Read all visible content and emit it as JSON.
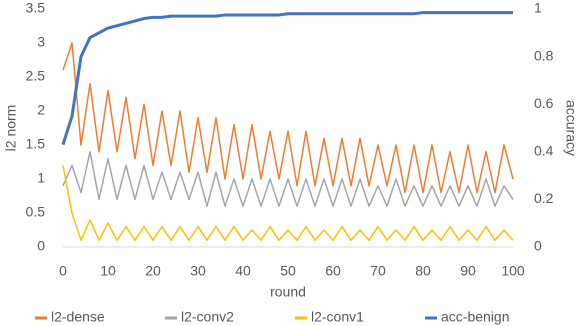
{
  "chart_data": {
    "type": "line",
    "x_label": "round",
    "y_label": "l2 norm",
    "y2_label": "accuracy",
    "x": [
      0,
      2,
      4,
      6,
      8,
      10,
      12,
      14,
      16,
      18,
      20,
      22,
      24,
      26,
      28,
      30,
      32,
      34,
      36,
      38,
      40,
      42,
      44,
      46,
      48,
      50,
      52,
      54,
      56,
      58,
      60,
      62,
      64,
      66,
      68,
      70,
      72,
      74,
      76,
      78,
      80,
      82,
      84,
      86,
      88,
      90,
      92,
      94,
      96,
      98,
      100
    ],
    "xlim": [
      0,
      100
    ],
    "xticks": [
      0,
      10,
      20,
      30,
      40,
      50,
      60,
      70,
      80,
      90,
      100
    ],
    "ylim": [
      0,
      3.5
    ],
    "yticks": [
      0,
      0.5,
      1,
      1.5,
      2,
      2.5,
      3,
      3.5
    ],
    "y2lim": [
      0,
      1
    ],
    "y2ticks": [
      0,
      0.2,
      0.4,
      0.6,
      0.8,
      1
    ],
    "grid": false,
    "legend": "bottom",
    "series": [
      {
        "name": "l2-dense",
        "color": "#ED7D31",
        "values": [
          2.6,
          3.0,
          1.5,
          2.4,
          1.4,
          2.3,
          1.4,
          2.2,
          1.3,
          2.1,
          1.2,
          2.0,
          1.2,
          2.0,
          1.1,
          1.9,
          1.1,
          1.9,
          1.0,
          1.8,
          1.0,
          1.8,
          1.0,
          1.7,
          1.0,
          1.7,
          0.9,
          1.7,
          0.9,
          1.6,
          0.9,
          1.6,
          0.9,
          1.6,
          0.9,
          1.5,
          0.9,
          1.5,
          0.8,
          1.5,
          0.8,
          1.5,
          0.8,
          1.4,
          0.8,
          1.5,
          0.8,
          1.4,
          0.8,
          1.5,
          1.0
        ]
      },
      {
        "name": "l2-conv2",
        "color": "#A5A5A5",
        "values": [
          0.9,
          1.2,
          0.8,
          1.4,
          0.7,
          1.3,
          0.7,
          1.2,
          0.7,
          1.2,
          0.7,
          1.1,
          0.7,
          1.1,
          0.7,
          1.1,
          0.6,
          1.1,
          0.6,
          1.0,
          0.6,
          1.0,
          0.6,
          1.0,
          0.6,
          1.0,
          0.6,
          1.0,
          0.6,
          1.0,
          0.6,
          1.0,
          0.6,
          1.0,
          0.6,
          0.9,
          0.6,
          1.0,
          0.6,
          0.9,
          0.6,
          0.9,
          0.6,
          0.9,
          0.6,
          0.9,
          0.6,
          1.0,
          0.6,
          0.9,
          0.7
        ]
      },
      {
        "name": "l2-conv1",
        "color": "#FFC000",
        "values": [
          1.2,
          0.5,
          0.1,
          0.4,
          0.1,
          0.35,
          0.1,
          0.3,
          0.1,
          0.3,
          0.1,
          0.3,
          0.1,
          0.3,
          0.1,
          0.3,
          0.1,
          0.3,
          0.1,
          0.3,
          0.1,
          0.25,
          0.1,
          0.3,
          0.1,
          0.25,
          0.1,
          0.3,
          0.1,
          0.25,
          0.1,
          0.3,
          0.1,
          0.25,
          0.1,
          0.3,
          0.1,
          0.25,
          0.1,
          0.3,
          0.1,
          0.25,
          0.1,
          0.3,
          0.1,
          0.25,
          0.1,
          0.3,
          0.1,
          0.25,
          0.1
        ]
      },
      {
        "name": "acc-benign",
        "color": "#4472C4",
        "axis": "y2",
        "values": [
          0.43,
          0.55,
          0.8,
          0.88,
          0.9,
          0.92,
          0.93,
          0.94,
          0.95,
          0.96,
          0.965,
          0.965,
          0.97,
          0.97,
          0.97,
          0.97,
          0.97,
          0.97,
          0.975,
          0.975,
          0.975,
          0.975,
          0.975,
          0.975,
          0.975,
          0.98,
          0.98,
          0.98,
          0.98,
          0.98,
          0.98,
          0.98,
          0.98,
          0.98,
          0.98,
          0.98,
          0.98,
          0.98,
          0.98,
          0.98,
          0.985,
          0.985,
          0.985,
          0.985,
          0.985,
          0.985,
          0.985,
          0.985,
          0.985,
          0.985,
          0.985
        ]
      }
    ]
  }
}
